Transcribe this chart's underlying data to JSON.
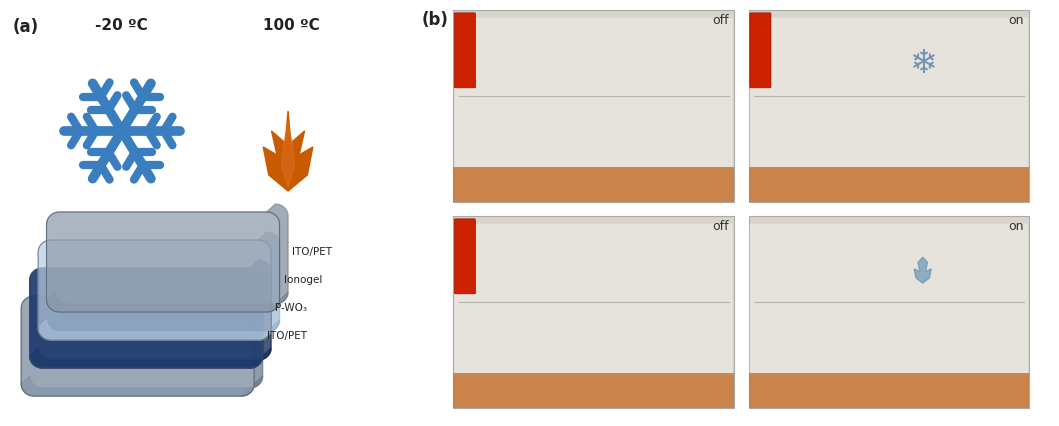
{
  "panel_a_label": "(a)",
  "panel_b_label": "(b)",
  "cold_temp": "-20 ºC",
  "hot_temp": "100 ºC",
  "snowflake_color": "#3a7ebf",
  "flame_color": "#c85a00",
  "background_color": "#ffffff",
  "text_color": "#222222",
  "title_fontsize": 12,
  "label_fontsize": 8,
  "layer_labels": [
    "ITO/PET",
    "Ionogel",
    "P-WO₃",
    "ITO/PET"
  ],
  "layer_face_colors": [
    "#9aaab8",
    "#b8cce0",
    "#1e3a6e",
    "#8899aa"
  ],
  "layer_alphas": [
    0.9,
    0.75,
    0.95,
    0.7
  ],
  "photo_border_color": "#aaaaaa",
  "copper_color": "#c87533",
  "photo_bg": "#d4cfc5",
  "photo_white": "#e8e6e0",
  "photo_label_off": "off",
  "photo_label_on": "on",
  "fig_width": 10.59,
  "fig_height": 4.26
}
